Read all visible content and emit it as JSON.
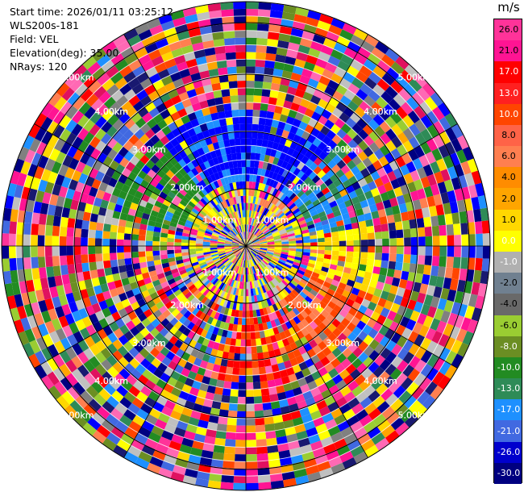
{
  "info": {
    "start_time": "Start time: 2026/01/11 03:25:12",
    "instrument": "WLS200s-181",
    "field": "Field: VEL",
    "elevation": "Elevation(deg): 35.00",
    "nrays": "NRays: 120"
  },
  "colorbar": {
    "unit": "m/s",
    "labels": [
      "26.0",
      "21.0",
      "17.0",
      "13.0",
      "10.0",
      "8.0",
      "6.0",
      "4.0",
      "2.0",
      "1.0",
      "0.0",
      "-1.0",
      "-2.0",
      "-4.0",
      "-6.0",
      "-8.0",
      "-10.0",
      "-13.0",
      "-17.0",
      "-21.0",
      "-26.0",
      "-30.0"
    ],
    "colors": [
      "#ff1493",
      "#ff69b4",
      "#ff0000",
      "#ff2a2a",
      "#ff4500",
      "#ff5a2a",
      "#ff7f50",
      "#ff8c3c",
      "#ffa500",
      "#ffd700",
      "#ffff00",
      "#c0c0c0",
      "#808080",
      "#606060",
      "#9acd32",
      "#6b8e23",
      "#228b22",
      "#2e8b57",
      "#1e90ff",
      "#4169e1",
      "#0000ff",
      "#1a1aff",
      "#00008b",
      "#000080",
      "#191970",
      "#2a2a6e"
    ]
  },
  "chart_data": {
    "type": "heatmap",
    "title": "Start time: 2026/01/11 03:25:12",
    "field": "VEL",
    "units": "m/s",
    "elevation_deg": 35.0,
    "n_rays": 120,
    "range_ring_labels": [
      "1.00km",
      "2.00km",
      "3.00km",
      "4.00km",
      "5.00km"
    ],
    "range_rings_km": [
      1,
      2,
      3,
      4,
      5
    ],
    "colorbar_ticks": [
      26.0,
      21.0,
      17.0,
      13.0,
      10.0,
      8.0,
      6.0,
      4.0,
      2.0,
      1.0,
      0.0,
      -1.0,
      -2.0,
      -4.0,
      -6.0,
      -8.0,
      -10.0,
      -13.0,
      -17.0,
      -21.0,
      -26.0,
      -30.0
    ],
    "features": [
      {
        "region": "north",
        "velocity_approx": -17.0
      },
      {
        "region": "east",
        "velocity_approx": 3.0
      },
      {
        "region": "south-east",
        "velocity_approx": 10.0
      },
      {
        "region": "outer",
        "velocity_approx": "noise"
      }
    ]
  }
}
